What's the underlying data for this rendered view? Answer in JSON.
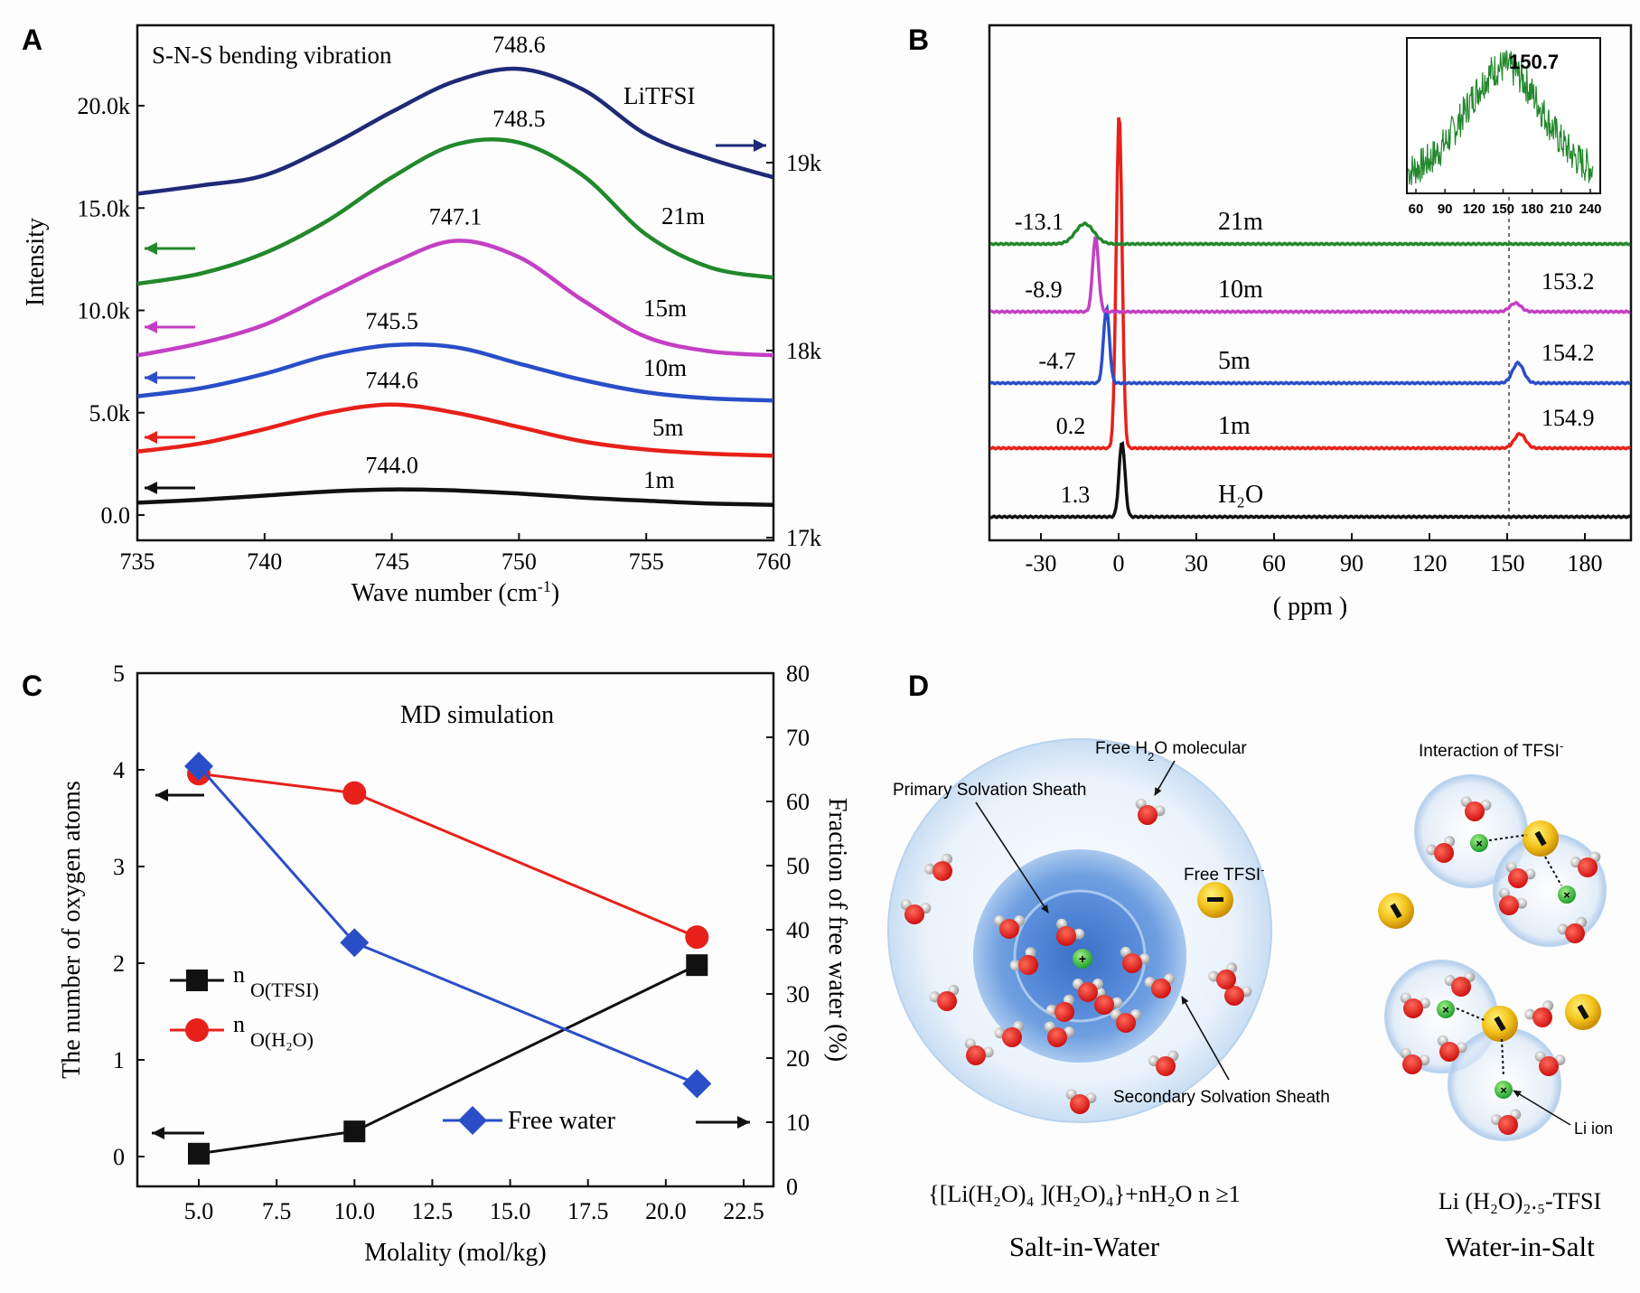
{
  "chart_data": [
    {
      "panel": "A",
      "type": "line",
      "title": "S-N-S bending vibration",
      "label": "LiTFSI",
      "xlabel": "Wave number (cm",
      "xlabel_sup": "-1",
      "xlabel_close": ")",
      "ylabel": "Intensity",
      "xlim": [
        735,
        760
      ],
      "ylim": [
        0,
        20000
      ],
      "x_ticks": [
        "735",
        "740",
        "745",
        "750",
        "755",
        "760"
      ],
      "y_ticks": [
        "0.0",
        "5.0k",
        "10.0k",
        "15.0k",
        "20.0k"
      ],
      "y2_ticks": [
        "17k",
        "18k",
        "19k"
      ],
      "x": [
        735,
        737.5,
        740,
        742.5,
        745,
        747.5,
        750,
        752.5,
        755,
        757.5,
        760
      ],
      "series": [
        {
          "name": "1m",
          "peak": "744.0",
          "color": "#111111",
          "values": [
            600,
            750,
            950,
            1150,
            1250,
            1200,
            1050,
            850,
            700,
            560,
            500
          ]
        },
        {
          "name": "5m",
          "peak": "744.6",
          "color": "#e8201a",
          "values": [
            3100,
            3500,
            4200,
            5000,
            5400,
            5000,
            4300,
            3600,
            3200,
            3000,
            2900
          ]
        },
        {
          "name": "10m",
          "peak": "745.5",
          "color": "#2a4ec8",
          "values": [
            5800,
            6200,
            6900,
            7800,
            8300,
            8200,
            7400,
            6600,
            6000,
            5700,
            5600
          ]
        },
        {
          "name": "15m",
          "peak": "747.1",
          "color": "#c43fc4",
          "values": [
            7800,
            8400,
            9300,
            10800,
            12300,
            13400,
            12600,
            10500,
            8700,
            8000,
            7800
          ]
        },
        {
          "name": "21m",
          "peak": "748.5",
          "color": "#22882c",
          "values": [
            11300,
            11800,
            12800,
            14400,
            16500,
            18100,
            18200,
            16600,
            13700,
            12100,
            11600
          ]
        },
        {
          "name": "",
          "peak": "748.6",
          "color": "#1e2a78",
          "values": [
            15700,
            16100,
            16600,
            18000,
            19700,
            21200,
            21800,
            20800,
            18600,
            17400,
            16500
          ]
        }
      ]
    },
    {
      "panel": "B",
      "type": "line",
      "xlabel": "( ppm )",
      "xlim": [
        -50,
        200
      ],
      "x_ticks": [
        "-30",
        "0",
        "30",
        "60",
        "90",
        "120",
        "150",
        "180"
      ],
      "dashed_line_at": 150.7,
      "series": [
        {
          "name": "H₂O",
          "color": "#111111",
          "main_peak": "1.3",
          "main_pos": 1.3,
          "main_height": 1.3,
          "side_peak": "",
          "side_pos": null
        },
        {
          "name": "1m",
          "color": "#e8201a",
          "main_peak": "0.2",
          "main_pos": 0.2,
          "main_height": 5.8,
          "side_peak": "154.9",
          "side_pos": 154.9,
          "side_height": 0.25
        },
        {
          "name": "5m",
          "color": "#2a4ec8",
          "main_peak": "-4.7",
          "main_pos": -4.7,
          "main_height": 1.3,
          "side_peak": "154.2",
          "side_pos": 154.2,
          "side_height": 0.35
        },
        {
          "name": "10m",
          "color": "#c43fc4",
          "main_peak": "-8.9",
          "main_pos": -8.9,
          "main_height": 1.3,
          "side_peak": "153.2",
          "side_pos": 153.2,
          "side_height": 0.15
        },
        {
          "name": "21m",
          "color": "#22882c",
          "main_peak": "-13.1",
          "main_pos": -13.1,
          "main_height": 0.35,
          "side_peak": "",
          "side_pos": null
        }
      ],
      "inset": {
        "peak_label": "150.7",
        "xlim": [
          50,
          245
        ],
        "x_ticks": [
          "60",
          "90",
          "120",
          "150",
          "180",
          "210",
          "240"
        ],
        "center": 150.7,
        "color": "#22882c"
      }
    },
    {
      "panel": "C",
      "type": "line",
      "title": "MD simulation",
      "xlabel": "Molality (mol/kg)",
      "ylabel": "The number of oxygen atoms",
      "y2label": "Fraction of free water (%)",
      "xlim": [
        2.5,
        24.5
      ],
      "ylim": [
        -0.25,
        5
      ],
      "y2lim": [
        0,
        80
      ],
      "x_ticks": [
        "5.0",
        "7.5",
        "10.0",
        "12.5",
        "15.0",
        "17.5",
        "20.0",
        "22.5"
      ],
      "y_ticks": [
        "0",
        "1",
        "2",
        "3",
        "4",
        "5"
      ],
      "y2_ticks": [
        "0",
        "10",
        "20",
        "30",
        "40",
        "50",
        "60",
        "70",
        "80"
      ],
      "x": [
        5,
        10,
        21
      ],
      "series": [
        {
          "name": "n",
          "name_sub": "O(TFSI)",
          "color": "#111111",
          "marker": "square",
          "axis": "left",
          "values": [
            0.03,
            0.26,
            1.98
          ]
        },
        {
          "name": "n",
          "name_sub": "O(H₂O)",
          "color": "#e8201a",
          "marker": "circle",
          "axis": "left",
          "values": [
            3.96,
            3.76,
            2.27
          ]
        },
        {
          "name": "Free water",
          "name_sub": "",
          "color": "#2a4ec8",
          "marker": "diamond",
          "axis": "right",
          "values": [
            65.5,
            38.0,
            16.0
          ]
        }
      ]
    }
  ],
  "panel_labels": [
    "A",
    "B",
    "C",
    "D"
  ],
  "diagram": {
    "free_h2o": "Free H",
    "free_h2o_sub": "2",
    "free_h2o_end": "O molecular",
    "primary": "Primary  Solvation Sheath",
    "secondary": "Secondary Solvation Sheath",
    "free_tfsi": "Free TFSI",
    "free_tfsi_sup": "-",
    "interaction": "Interaction  of  TFSI",
    "interaction_sup": "-",
    "li_ion": "Li ion",
    "formula_left": "{[Li(H₂O)₄ ](H₂O)₄}+nH₂O n ≥1",
    "formula_right": "Li (H₂O)₂.₅-TFSI",
    "caption_left": "Salt-in-Water",
    "caption_right": "Water-in-Salt"
  }
}
